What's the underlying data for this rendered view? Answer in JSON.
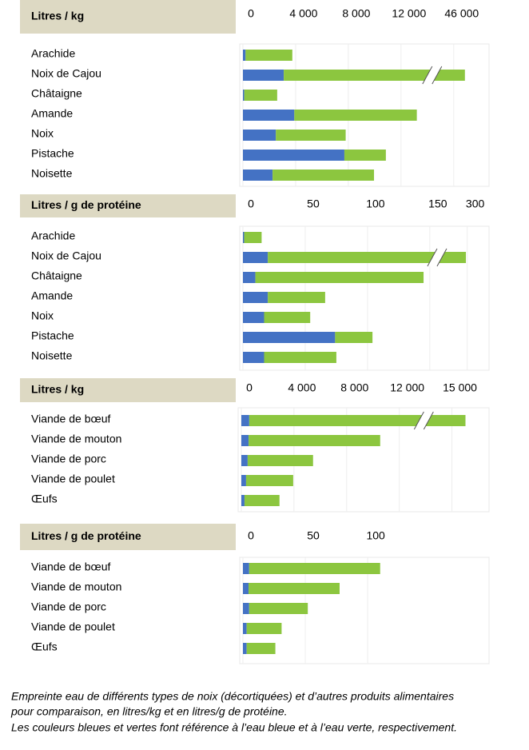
{
  "chart_data": [
    {
      "type": "bar",
      "title": "Litres / kg",
      "stacked": true,
      "categories": [
        "Arachide",
        "Noix de Cajou",
        "Châtaigne",
        "Amande",
        "Noix",
        "Pistache",
        "Noisette"
      ],
      "series": [
        {
          "color": "#4472c4",
          "values": [
            200,
            3100,
            100,
            3900,
            2500,
            7700,
            2250
          ]
        },
        {
          "color": "#8cc63f",
          "values": [
            3550,
            43750,
            2500,
            9300,
            5300,
            3150,
            7700
          ]
        }
      ],
      "xlim": [
        0,
        48500
      ],
      "xticks": [
        0,
        {
          "value": 4000,
          "label": "4 000"
        },
        {
          "value": 8000,
          "label": "8 000"
        },
        {
          "value": 12000,
          "label": "12 000"
        },
        {
          "value": 46000,
          "label": "46 000"
        }
      ],
      "axis_break": {
        "from": 14000,
        "to": 44000
      }
    },
    {
      "type": "bar",
      "title": "Litres / g de protéine",
      "stacked": true,
      "categories": [
        "Arachide",
        "Noix de Cajou",
        "Châtaigne",
        "Amande",
        "Noix",
        "Pistache",
        "Noisette"
      ],
      "series": [
        {
          "color": "#4472c4",
          "values": [
            1,
            20,
            10,
            20,
            17,
            74,
            17
          ]
        },
        {
          "color": "#8cc63f",
          "values": [
            14,
            279,
            135,
            46,
            37,
            30,
            58
          ]
        }
      ],
      "xlim": [
        0,
        315
      ],
      "xticks": [
        0,
        50,
        100,
        150,
        300
      ],
      "axis_break": {
        "from": 152,
        "to": 272
      }
    },
    {
      "type": "bar",
      "title": "Litres / kg",
      "stacked": true,
      "categories": [
        "Viande de bœuf",
        "Viande de mouton",
        "Viande de porc",
        "Viande de poulet",
        "Œufs"
      ],
      "series": [
        {
          "color": "#4472c4",
          "values": [
            600,
            550,
            480,
            360,
            240
          ]
        },
        {
          "color": "#8cc63f",
          "values": [
            15430,
            10000,
            4970,
            3580,
            2660
          ]
        }
      ],
      "xlim": [
        0,
        17700
      ],
      "xticks": [
        0,
        {
          "value": 4000,
          "label": "4 000"
        },
        {
          "value": 8000,
          "label": "8 000"
        },
        {
          "value": 12000,
          "label": "12 000"
        },
        {
          "value": 15000,
          "label": "15 000"
        }
      ],
      "axis_break": {
        "from": 13500,
        "to": 12500
      }
    },
    {
      "type": "bar",
      "title": "Litres / g de protéine",
      "stacked": true,
      "categories": [
        "Viande de bœuf",
        "Viande de mouton",
        "Viande de porc",
        "Viande de poulet",
        "Œufs"
      ],
      "series": [
        {
          "color": "#4472c4",
          "values": [
            5,
            4.5,
            5,
            3,
            3
          ]
        },
        {
          "color": "#8cc63f",
          "values": [
            105,
            73,
            47,
            28,
            23
          ]
        }
      ],
      "xlim": [
        0,
        196
      ],
      "xticks": [
        0,
        50,
        100
      ]
    }
  ],
  "caption": [
    "Empreinte eau de différents types de noix (décortiquées) et d’autres produits alimentaires",
    "pour comparaison, en litres/kg et en litres/g de protéine.",
    "Les couleurs bleues et vertes font référence à l’eau bleue et à l’eau verte, respectivement."
  ]
}
